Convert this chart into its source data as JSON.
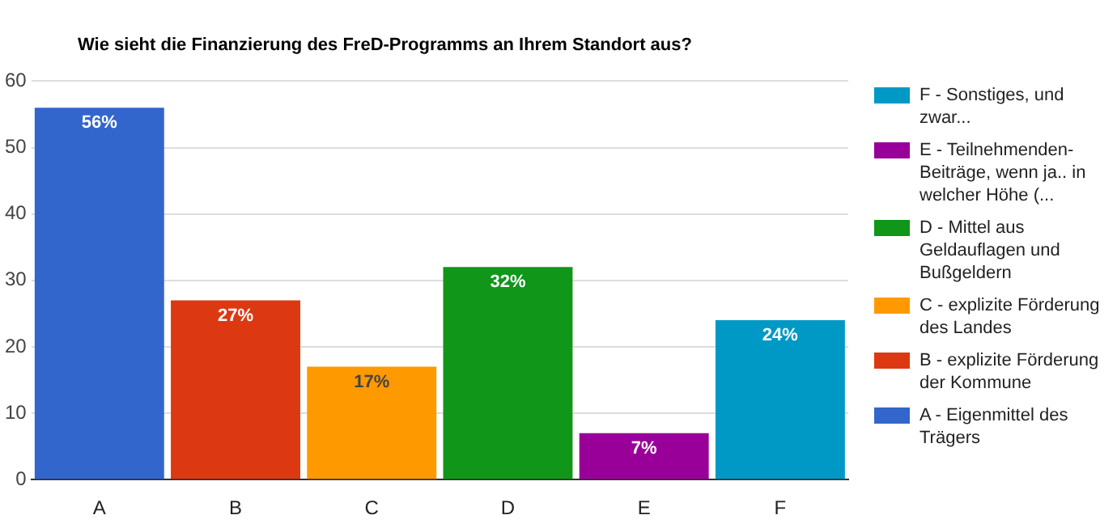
{
  "chart_data": {
    "type": "bar",
    "title": "Wie sieht die Finanzierung des FreD-Programms an Ihrem Standort aus?",
    "categories": [
      "A",
      "B",
      "C",
      "D",
      "E",
      "F"
    ],
    "legend": "right",
    "grid": "y",
    "ylim": [
      0,
      60
    ],
    "yticks": [
      0,
      10,
      20,
      30,
      40,
      50,
      60
    ],
    "series": [
      {
        "name": "A - Eigenmittel des Trägers",
        "color": "#3366cc",
        "values": [
          56,
          null,
          null,
          null,
          null,
          null
        ],
        "value_labels": [
          "56%",
          null,
          null,
          null,
          null,
          null
        ]
      },
      {
        "name": "B - explizite Förderung der Kommune",
        "color": "#dc3912",
        "values": [
          null,
          27,
          null,
          null,
          null,
          null
        ],
        "value_labels": [
          null,
          "27%",
          null,
          null,
          null,
          null
        ]
      },
      {
        "name": "C - explizite Förderung des Landes",
        "color": "#ff9900",
        "values": [
          null,
          null,
          17,
          null,
          null,
          null
        ],
        "value_labels": [
          null,
          null,
          "17%",
          null,
          null,
          null
        ]
      },
      {
        "name": "D - Mittel aus Geldauflagen und Bußgeldern",
        "color": "#109618",
        "values": [
          null,
          null,
          null,
          32,
          null,
          null
        ],
        "value_labels": [
          null,
          null,
          null,
          "32%",
          null,
          null
        ]
      },
      {
        "name": "E - Teilnehmenden-Beiträge, wenn ja.. in welcher Höhe (...",
        "color": "#990099",
        "values": [
          null,
          null,
          null,
          null,
          7,
          null
        ],
        "value_labels": [
          null,
          null,
          null,
          null,
          "7%",
          null
        ]
      },
      {
        "name": "F - Sonstiges, und zwar...",
        "color": "#0099c6",
        "values": [
          null,
          null,
          null,
          null,
          null,
          24
        ],
        "value_labels": [
          null,
          null,
          null,
          null,
          null,
          "24%"
        ]
      }
    ]
  }
}
